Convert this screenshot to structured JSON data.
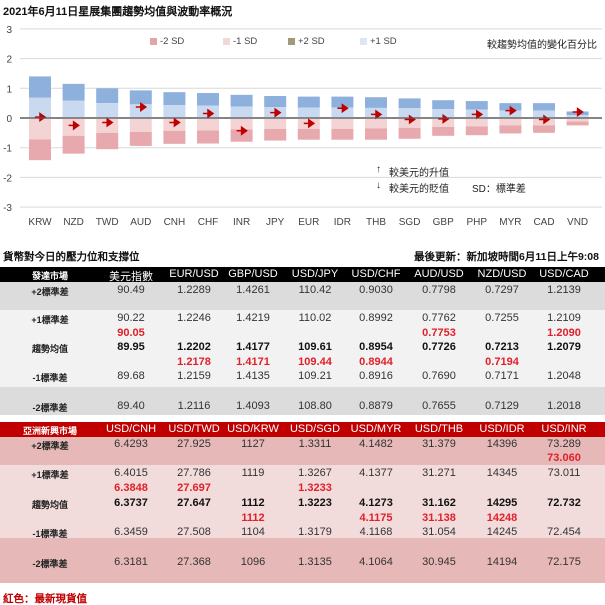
{
  "chart_data": {
    "type": "bar",
    "title": "2021年6月11日星展集團趨勢均值與波動率概況",
    "subtitle": "較趨勢均值的變化百分比",
    "ylim": [
      -3,
      3
    ],
    "yticks": [
      "3",
      "2",
      "1",
      "0",
      "-1",
      "-2",
      "-3"
    ],
    "legend": [
      {
        "label": "-2 SD",
        "color": "#e4a4aa"
      },
      {
        "label": "-1 SD",
        "color": "#f4d8d8"
      },
      {
        "label": "+2 SD",
        "color": "#9e9a7a"
      },
      {
        "label": "+1 SD",
        "color": "#dde6f2"
      }
    ],
    "categories": [
      "KRW",
      "NZD",
      "TWD",
      "AUD",
      "CNH",
      "CHF",
      "INR",
      "JPY",
      "EUR",
      "IDR",
      "THB",
      "SGD",
      "GBP",
      "PHP",
      "MYR",
      "CAD",
      "VND"
    ],
    "series": [
      {
        "name": "+2 SD",
        "values": [
          1.4,
          1.15,
          1.0,
          0.93,
          0.87,
          0.84,
          0.78,
          0.74,
          0.72,
          0.72,
          0.7,
          0.66,
          0.6,
          0.57,
          0.5,
          0.5,
          0.22
        ]
      },
      {
        "name": "+1 SD",
        "values": [
          0.68,
          0.58,
          0.5,
          0.46,
          0.43,
          0.42,
          0.38,
          0.37,
          0.35,
          0.35,
          0.34,
          0.33,
          0.3,
          0.28,
          0.25,
          0.25,
          0.1
        ]
      },
      {
        "name": "-1 SD",
        "values": [
          -0.72,
          -0.6,
          -0.5,
          -0.47,
          -0.43,
          -0.42,
          -0.38,
          -0.37,
          -0.37,
          -0.37,
          -0.35,
          -0.33,
          -0.3,
          -0.28,
          -0.25,
          -0.25,
          -0.12
        ]
      },
      {
        "name": "-2 SD",
        "values": [
          -1.42,
          -1.2,
          -1.05,
          -0.94,
          -0.87,
          -0.86,
          -0.8,
          -0.76,
          -0.73,
          -0.73,
          -0.73,
          -0.7,
          -0.6,
          -0.58,
          -0.52,
          -0.5,
          -0.25
        ]
      },
      {
        "name": "current",
        "values": [
          0.03,
          -0.25,
          -0.15,
          0.37,
          -0.15,
          0.15,
          -0.43,
          0.18,
          -0.18,
          0.33,
          0.12,
          -0.05,
          -0.03,
          0.12,
          0.25,
          -0.05,
          0.2
        ]
      }
    ],
    "annotations": {
      "up": "較美元的升值",
      "down": "較美元的貶值",
      "sd_note": "SD：標準差"
    },
    "colors": {
      "plus2": "#8eb0dd",
      "plus1": "#c9daf0",
      "minus1": "#f3d3d3",
      "minus2": "#e7a9ad",
      "arrow": "#c00000"
    }
  },
  "tables": {
    "title": "貨幣對今日的壓力位和支撐位",
    "updated": "最後更新：新加坡時間6月11日上午9:08",
    "footnote": "紅色：最新現貨值",
    "row_labels": [
      "+2標準差",
      "+1標準差",
      "趨勢均值",
      "-1標準差",
      "-2標準差"
    ],
    "developed": {
      "header": "發達市場",
      "columns": [
        "美元指數",
        "EUR/USD",
        "GBP/USD",
        "USD/JPY",
        "USD/CHF",
        "AUD/USD",
        "NZD/USD",
        "USD/CAD"
      ],
      "plus2": [
        "90.49",
        "1.2289",
        "1.4261",
        "110.42",
        "0.9030",
        "0.7798",
        "0.7297",
        "1.2139"
      ],
      "plus1": [
        "90.22",
        "1.2246",
        "1.4219",
        "110.02",
        "0.8992",
        "0.7762",
        "0.7255",
        "1.2109"
      ],
      "spot_above_mean": [
        "90.05",
        "",
        "",
        "",
        "",
        "0.7753",
        "",
        "1.2090"
      ],
      "mean": [
        "89.95",
        "1.2202",
        "1.4177",
        "109.61",
        "0.8954",
        "0.7726",
        "0.7213",
        "1.2079"
      ],
      "spot_below_mean": [
        "",
        "1.2178",
        "1.4171",
        "109.44",
        "0.8944",
        "",
        "0.7194",
        ""
      ],
      "minus1": [
        "89.68",
        "1.2159",
        "1.4135",
        "109.21",
        "0.8916",
        "0.7690",
        "0.7171",
        "1.2048"
      ],
      "minus2": [
        "89.40",
        "1.2116",
        "1.4093",
        "108.80",
        "0.8879",
        "0.7655",
        "0.7129",
        "1.2018"
      ]
    },
    "asia": {
      "header": "亞洲新興市場",
      "columns": [
        "USD/CNH",
        "USD/TWD",
        "USD/KRW",
        "USD/SGD",
        "USD/MYR",
        "USD/THB",
        "USD/IDR",
        "USD/INR"
      ],
      "plus2": [
        "6.4293",
        "27.925",
        "1127",
        "1.3311",
        "4.1482",
        "31.379",
        "14396",
        "73.289"
      ],
      "spot_above_plus1": [
        "",
        "",
        "",
        "",
        "",
        "",
        "",
        "73.060"
      ],
      "plus1": [
        "6.4015",
        "27.786",
        "1119",
        "1.3267",
        "4.1377",
        "31.271",
        "14345",
        "73.011"
      ],
      "spot_above_mean": [
        "6.3848",
        "27.697",
        "",
        "1.3233",
        "",
        "",
        "",
        ""
      ],
      "mean": [
        "6.3737",
        "27.647",
        "1112",
        "1.3223",
        "4.1273",
        "31.162",
        "14295",
        "72.732"
      ],
      "spot_below_mean": [
        "",
        "",
        "1112",
        "",
        "4.1175",
        "31.138",
        "14248",
        ""
      ],
      "minus1": [
        "6.3459",
        "27.508",
        "1104",
        "1.3179",
        "4.1168",
        "31.054",
        "14245",
        "72.454"
      ],
      "minus2": [
        "6.3181",
        "27.368",
        "1096",
        "1.3135",
        "4.1064",
        "30.945",
        "14194",
        "72.175"
      ]
    }
  }
}
